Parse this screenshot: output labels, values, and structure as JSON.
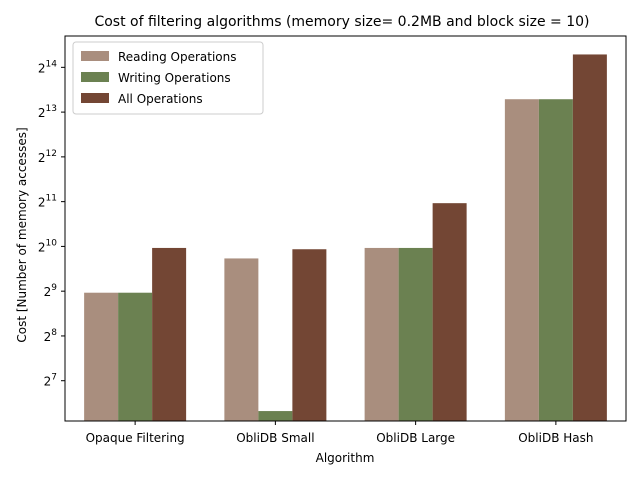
{
  "chart_data": {
    "type": "bar",
    "title": "Cost of filtering algorithms (memory size= 0.2MB and block size = 10)",
    "xlabel": "Algorithm",
    "ylabel": "Cost [Number of memory accesses]",
    "y_scale": "log2",
    "ylim_log2": [
      6.1,
      14.7
    ],
    "y_ticks_log2": [
      7,
      8,
      9,
      10,
      11,
      12,
      13,
      14
    ],
    "y_tick_labels": [
      "2",
      "2",
      "2",
      "2",
      "2",
      "2",
      "2",
      "2"
    ],
    "y_tick_exponents": [
      "7",
      "8",
      "9",
      "10",
      "11",
      "12",
      "13",
      "14"
    ],
    "categories": [
      "Opaque Filtering",
      "ObliDB Small",
      "ObliDB Large",
      "ObliDB Hash"
    ],
    "series": [
      {
        "name": "Reading Operations",
        "color": "#a98e7e",
        "values": [
          500,
          850,
          1000,
          10000
        ]
      },
      {
        "name": "Writing Operations",
        "color": "#6b8151",
        "values": [
          500,
          80,
          1000,
          10000
        ]
      },
      {
        "name": "All Operations",
        "color": "#734634",
        "values": [
          1000,
          980,
          2000,
          20000
        ]
      }
    ],
    "legend_position": "top-left",
    "grid": false
  }
}
